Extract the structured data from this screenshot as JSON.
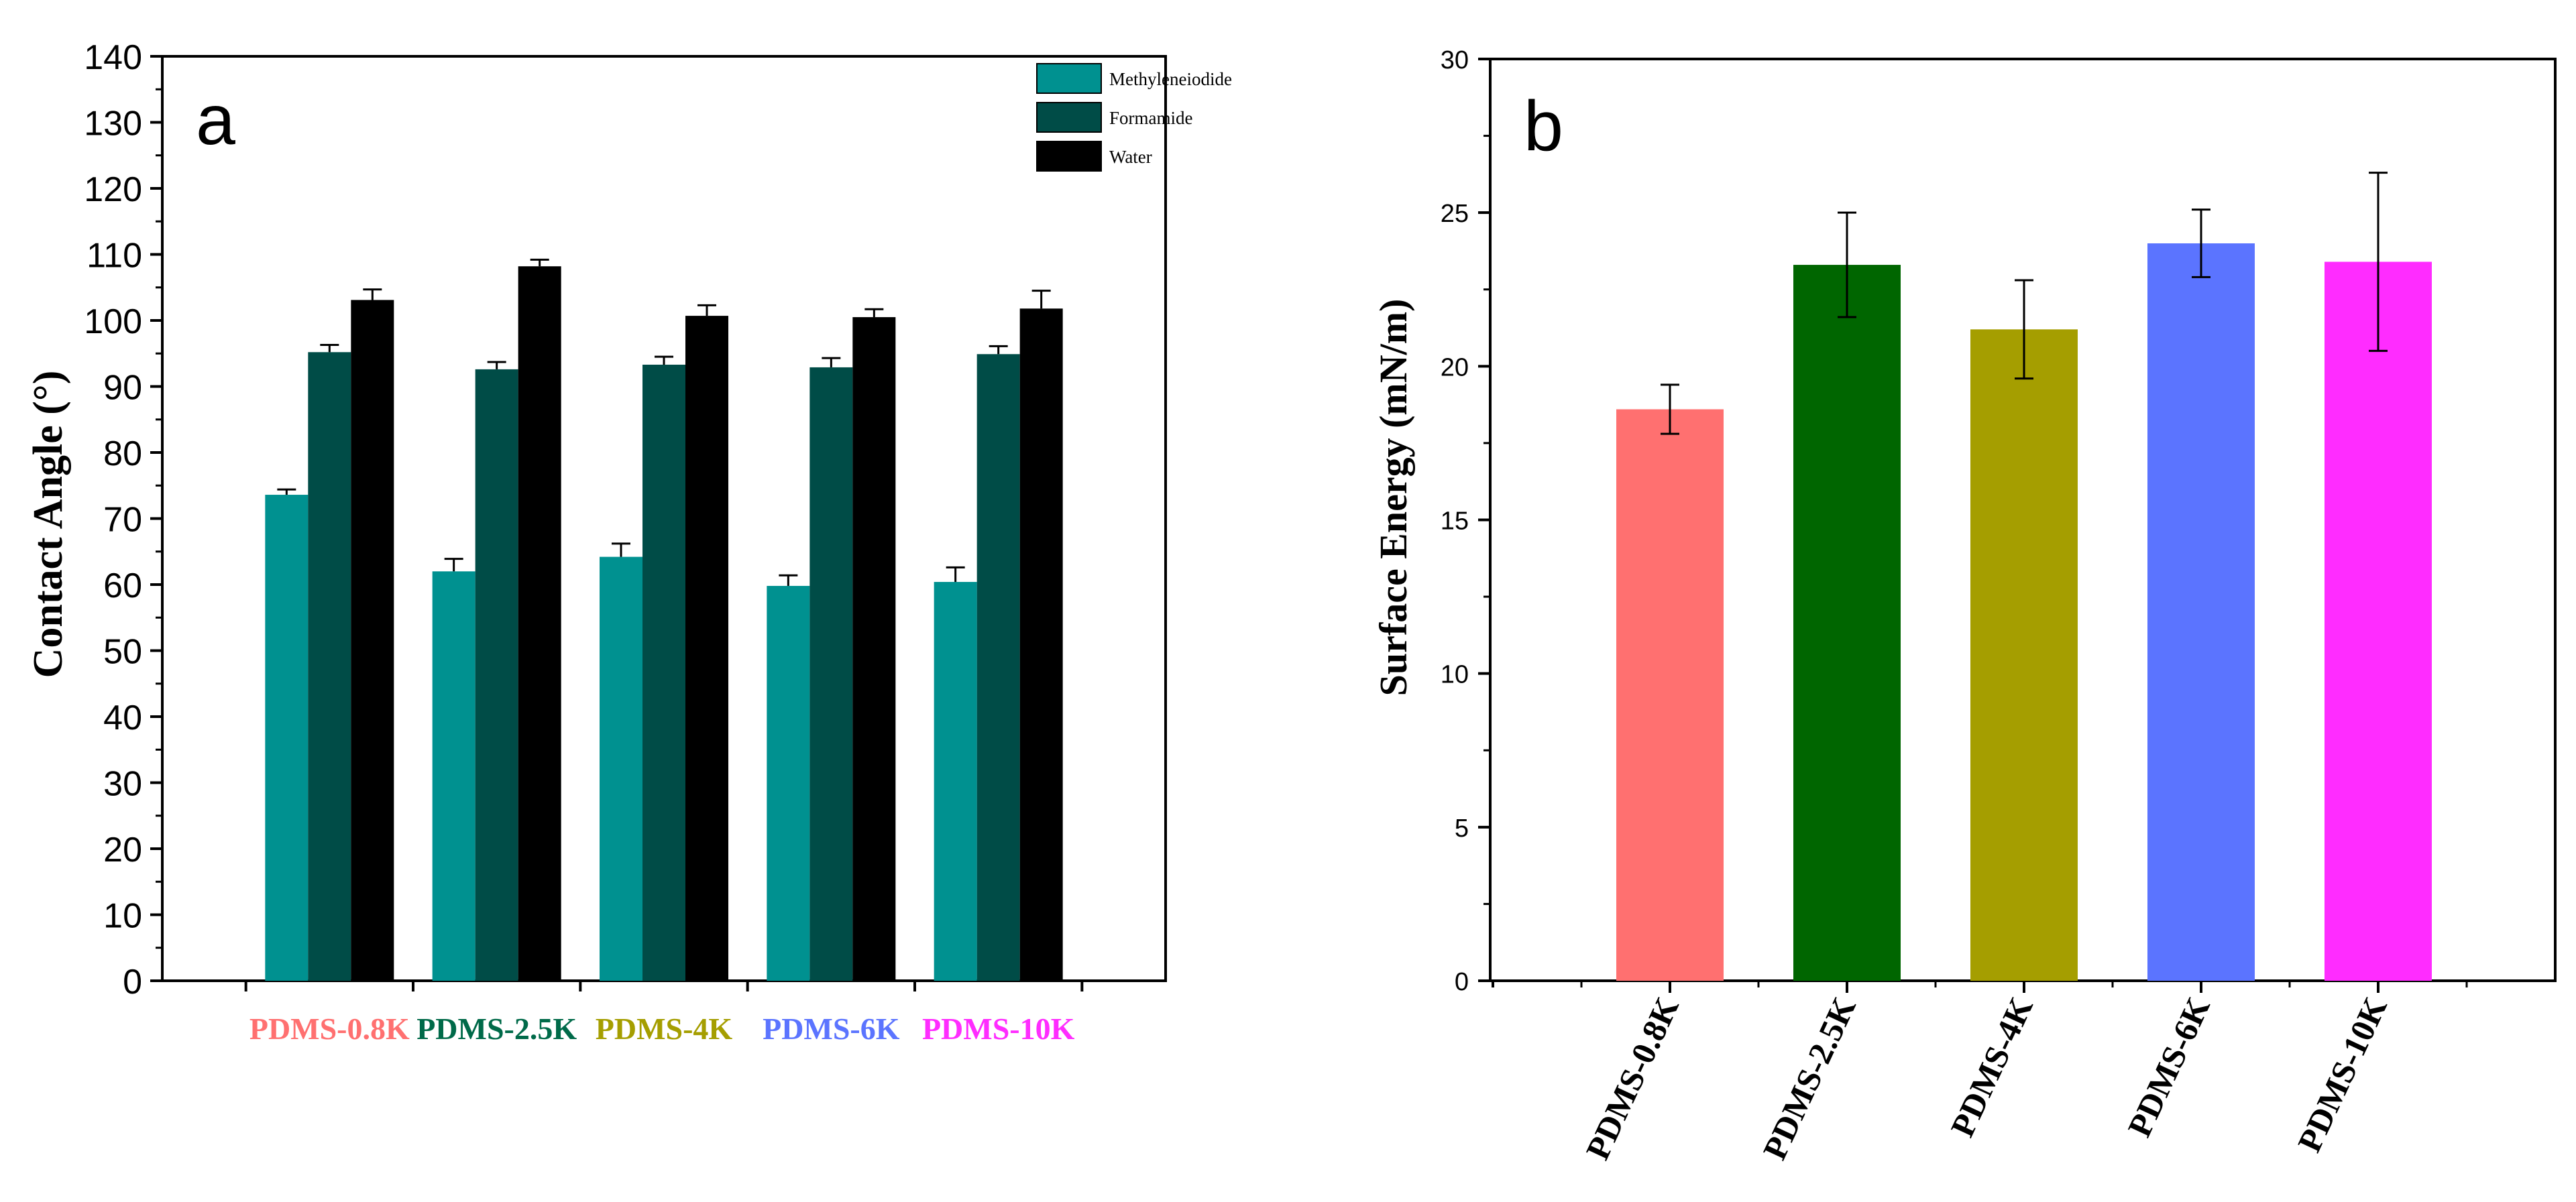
{
  "chart_data": [
    {
      "type": "bar",
      "panel_label": "a",
      "title": "",
      "xlabel": "",
      "ylabel": "Contact Angle (°)",
      "ylim": [
        0,
        140
      ],
      "yticks": [
        "0",
        "10",
        "20",
        "30",
        "40",
        "50",
        "60",
        "70",
        "80",
        "90",
        "100",
        "110",
        "120",
        "130",
        "140"
      ],
      "categories": [
        "PDMS-0.8K",
        "PDMS-2.5K",
        "PDMS-4K",
        "PDMS-6K",
        "PDMS-10K"
      ],
      "category_colors": [
        "#ff7070",
        "#006a49",
        "#a59e00",
        "#5b74ff",
        "#ff2cff"
      ],
      "legend_position": "top-right",
      "series": [
        {
          "name": "Methyleneiodide",
          "color": "#009190",
          "values": [
            73.6,
            62.0,
            64.2,
            59.8,
            60.4
          ],
          "errors": [
            0.8,
            1.9,
            2.0,
            1.6,
            2.2
          ]
        },
        {
          "name": "Formamide",
          "color": "#004c47",
          "values": [
            95.2,
            92.6,
            93.3,
            92.9,
            94.9
          ],
          "errors": [
            1.1,
            1.1,
            1.2,
            1.4,
            1.2
          ]
        },
        {
          "name": "Water",
          "color": "#000000",
          "values": [
            103.1,
            108.2,
            100.7,
            100.5,
            101.8
          ],
          "errors": [
            1.6,
            1.0,
            1.6,
            1.2,
            2.7
          ]
        }
      ]
    },
    {
      "type": "bar",
      "panel_label": "b",
      "title": "",
      "xlabel": "",
      "ylabel": "Surface Energy (mN/m)",
      "ylim": [
        0,
        30
      ],
      "yticks": [
        "0",
        "5",
        "10",
        "15",
        "20",
        "25",
        "30"
      ],
      "categories": [
        "PDMS-0.8K",
        "PDMS-2.5K",
        "PDMS-4K",
        "PDMS-6K",
        "PDMS-10K"
      ],
      "colors": [
        "#ff7070",
        "#006600",
        "#a59e00",
        "#5b74ff",
        "#ff2cff"
      ],
      "values": [
        18.6,
        23.3,
        21.2,
        24.0,
        23.4
      ],
      "errors": [
        0.8,
        1.7,
        1.6,
        1.1,
        2.9
      ]
    }
  ]
}
